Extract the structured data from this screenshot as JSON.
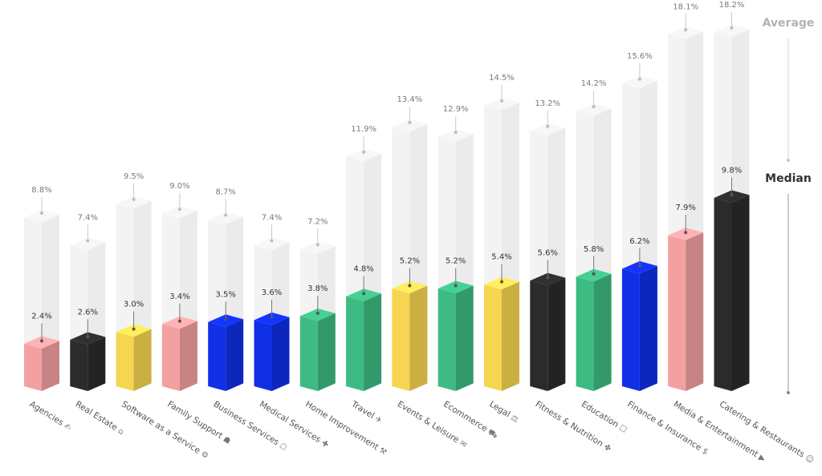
{
  "chart_data": {
    "type": "bar",
    "categories": [
      "Agencies",
      "Real Estate",
      "Software as a Service",
      "Family Support",
      "Business Services",
      "Medical Services",
      "Home Improvement",
      "Travel",
      "Events & Leisure",
      "Ecommerce",
      "Legal",
      "Fitness & Nutrition",
      "Education",
      "Finance & Insurance",
      "Media & Entertainment",
      "Catering & Restaurants"
    ],
    "series": [
      {
        "name": "Average",
        "values": [
          8.8,
          7.4,
          9.5,
          9.0,
          8.7,
          7.4,
          7.2,
          11.9,
          13.4,
          12.9,
          14.5,
          13.2,
          14.2,
          15.6,
          18.1,
          18.2
        ],
        "labels": [
          "8.8%",
          "7.4%",
          "9.5%",
          "9.0%",
          "8.7%",
          "7.4%",
          "7.2%",
          "11.9%",
          "13.4%",
          "12.9%",
          "14.5%",
          "13.2%",
          "14.2%",
          "15.6%",
          "18.1%",
          "18.2%"
        ]
      },
      {
        "name": "Median",
        "values": [
          2.4,
          2.6,
          3.0,
          3.4,
          3.5,
          3.6,
          3.8,
          4.8,
          5.2,
          5.2,
          5.4,
          5.6,
          5.8,
          6.2,
          7.9,
          9.8
        ],
        "labels": [
          "2.4%",
          "2.6%",
          "3.0%",
          "3.4%",
          "3.5%",
          "3.6%",
          "3.8%",
          "4.8%",
          "5.2%",
          "5.2%",
          "5.4%",
          "5.6%",
          "5.8%",
          "6.2%",
          "7.9%",
          "9.8%"
        ]
      }
    ],
    "median_colors": [
      "#f4a0a1",
      "#2b2b2b",
      "#f6d552",
      "#f4a0a1",
      "#1030e6",
      "#1030e6",
      "#3dbb82",
      "#3dbb82",
      "#f6d552",
      "#3dbb82",
      "#f6d552",
      "#2b2b2b",
      "#3dbb82",
      "#1030e6",
      "#f4a0a1",
      "#2b2b2b"
    ],
    "icons": [
      "handshake-icon",
      "house-icon",
      "gear-icon",
      "family-icon",
      "briefcase-icon",
      "medical-kit-icon",
      "toolbox-icon",
      "airplane-icon",
      "ticket-icon",
      "cart-icon",
      "gavel-icon",
      "dumbbell-icon",
      "book-icon",
      "coin-icon",
      "play-icon",
      "smile-icon"
    ],
    "icon_glyphs": [
      "✍",
      "⌂",
      "⚙",
      "☗",
      "☖",
      "✚",
      "⚒",
      "✈",
      "✉",
      "⛟",
      "⚖",
      "✤",
      "☐",
      "$",
      "▶",
      "☺"
    ],
    "ylim": [
      0,
      20
    ],
    "legend_position": "right",
    "grid": false
  },
  "legend": {
    "average_label": "Average",
    "median_label": "Median"
  }
}
